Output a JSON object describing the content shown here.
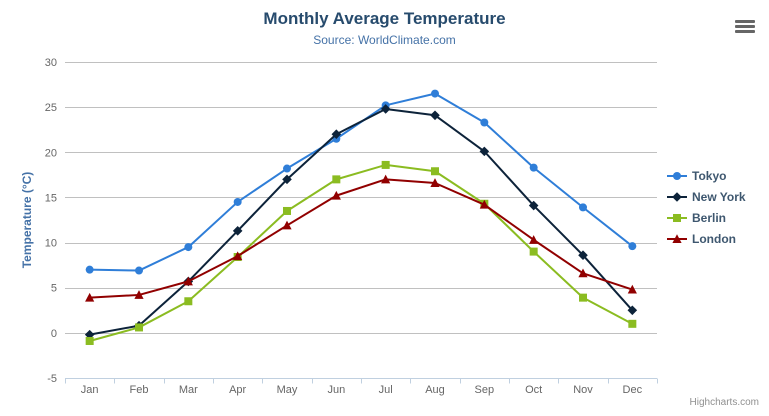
{
  "header": {
    "title": "Monthly Average Temperature",
    "subtitle": "Source: WorldClimate.com"
  },
  "chart_data": {
    "type": "line",
    "title": "Monthly Average Temperature",
    "subtitle": "Source: WorldClimate.com",
    "categories": [
      "Jan",
      "Feb",
      "Mar",
      "Apr",
      "May",
      "Jun",
      "Jul",
      "Aug",
      "Sep",
      "Oct",
      "Nov",
      "Dec"
    ],
    "series": [
      {
        "name": "Tokyo",
        "color": "#2f7ed8",
        "marker": "circle",
        "values": [
          7.0,
          6.9,
          9.5,
          14.5,
          18.2,
          21.5,
          25.2,
          26.5,
          23.3,
          18.3,
          13.9,
          9.6
        ]
      },
      {
        "name": "New York",
        "color": "#0d233a",
        "marker": "diamond",
        "values": [
          -0.2,
          0.8,
          5.7,
          11.3,
          17.0,
          22.0,
          24.8,
          24.1,
          20.1,
          14.1,
          8.6,
          2.5
        ]
      },
      {
        "name": "Berlin",
        "color": "#8bbc21",
        "marker": "square",
        "values": [
          -0.9,
          0.6,
          3.5,
          8.4,
          13.5,
          17.0,
          18.6,
          17.9,
          14.3,
          9.0,
          3.9,
          1.0
        ]
      },
      {
        "name": "London",
        "color": "#910000",
        "marker": "triangle",
        "values": [
          3.9,
          4.2,
          5.7,
          8.5,
          11.9,
          15.2,
          17.0,
          16.6,
          14.2,
          10.3,
          6.6,
          4.8
        ]
      }
    ],
    "xlabel": "",
    "ylabel": "Temperature (°C)",
    "ylim": [
      -5,
      30
    ],
    "y_ticks": [
      -5,
      0,
      5,
      10,
      15,
      20,
      25,
      30
    ],
    "grid": "horizontal-only",
    "legend_position": "right"
  },
  "credits": {
    "label": "Highcharts.com"
  },
  "icons": {
    "export_menu": "hamburger-icon"
  },
  "colors": {
    "title": "#274b6d",
    "subtitle": "#4572a7",
    "axis_title": "#4572a7",
    "tick_label": "#666666",
    "grid": "#c0c0c0",
    "axis_line": "#c0d0e0",
    "legend_text": "#3e576f",
    "credits": "#909090",
    "menu_icon": "#666666"
  }
}
